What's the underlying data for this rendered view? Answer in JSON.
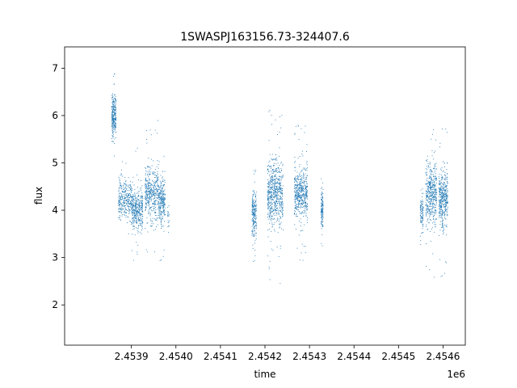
{
  "chart_data": {
    "type": "scatter",
    "title": "1SWASPJ163156.73-324407.6",
    "xlabel": "time",
    "ylabel": "flux",
    "x_offset_label": "1e6",
    "xlim": [
      2.45375,
      2.45465
    ],
    "ylim": [
      1.15,
      7.45
    ],
    "x_ticks": [
      2.4539,
      2.454,
      2.4541,
      2.4542,
      2.4543,
      2.4544,
      2.4545,
      2.4546
    ],
    "x_tick_labels": [
      "2.4539",
      "2.4540",
      "2.4541",
      "2.4542",
      "2.4543",
      "2.4544",
      "2.4545",
      "2.4546"
    ],
    "y_ticks": [
      2,
      3,
      4,
      5,
      6,
      7
    ],
    "y_tick_labels": [
      "2",
      "3",
      "4",
      "5",
      "6",
      "7"
    ],
    "grid": false,
    "legend": "none",
    "series": [
      {
        "color": "#1f77b4",
        "clusters": [
          {
            "x": [
              2.453855,
              2.453865
            ],
            "mean": 6.0,
            "spread": 0.22,
            "tail": 0.5,
            "n": 260
          },
          {
            "x": [
              2.45387,
              2.4539
            ],
            "mean": 4.25,
            "spread": 0.2,
            "tail": 0.5,
            "n": 320
          },
          {
            "x": [
              2.4539,
              2.453925
            ],
            "mean": 4.05,
            "spread": 0.22,
            "tail": 0.9,
            "n": 380
          },
          {
            "x": [
              2.45393,
              2.45396
            ],
            "mean": 4.35,
            "spread": 0.28,
            "tail": 1.0,
            "n": 420
          },
          {
            "x": [
              2.45396,
              2.453975
            ],
            "mean": 4.2,
            "spread": 0.25,
            "tail": 0.8,
            "n": 260
          },
          {
            "x": [
              2.45398,
              2.453985
            ],
            "mean": 3.9,
            "spread": 0.15,
            "tail": 0.3,
            "n": 20
          },
          {
            "x": [
              2.45417,
              2.45418
            ],
            "mean": 3.9,
            "spread": 0.25,
            "tail": 0.5,
            "n": 220
          },
          {
            "x": [
              2.454205,
              2.45424
            ],
            "mean": 4.35,
            "spread": 0.35,
            "tail": 1.3,
            "n": 650
          },
          {
            "x": [
              2.454265,
              2.454295
            ],
            "mean": 4.35,
            "spread": 0.28,
            "tail": 0.9,
            "n": 520
          },
          {
            "x": [
              2.454325,
              2.45433
            ],
            "mean": 4.0,
            "spread": 0.2,
            "tail": 0.6,
            "n": 140
          },
          {
            "x": [
              2.454548,
              2.454555
            ],
            "mean": 3.95,
            "spread": 0.2,
            "tail": 0.4,
            "n": 100
          },
          {
            "x": [
              2.45456,
              2.454585
            ],
            "mean": 4.35,
            "spread": 0.3,
            "tail": 1.2,
            "n": 450
          },
          {
            "x": [
              2.45459,
              2.45461
            ],
            "mean": 4.25,
            "spread": 0.3,
            "tail": 1.1,
            "n": 420
          }
        ]
      }
    ]
  }
}
